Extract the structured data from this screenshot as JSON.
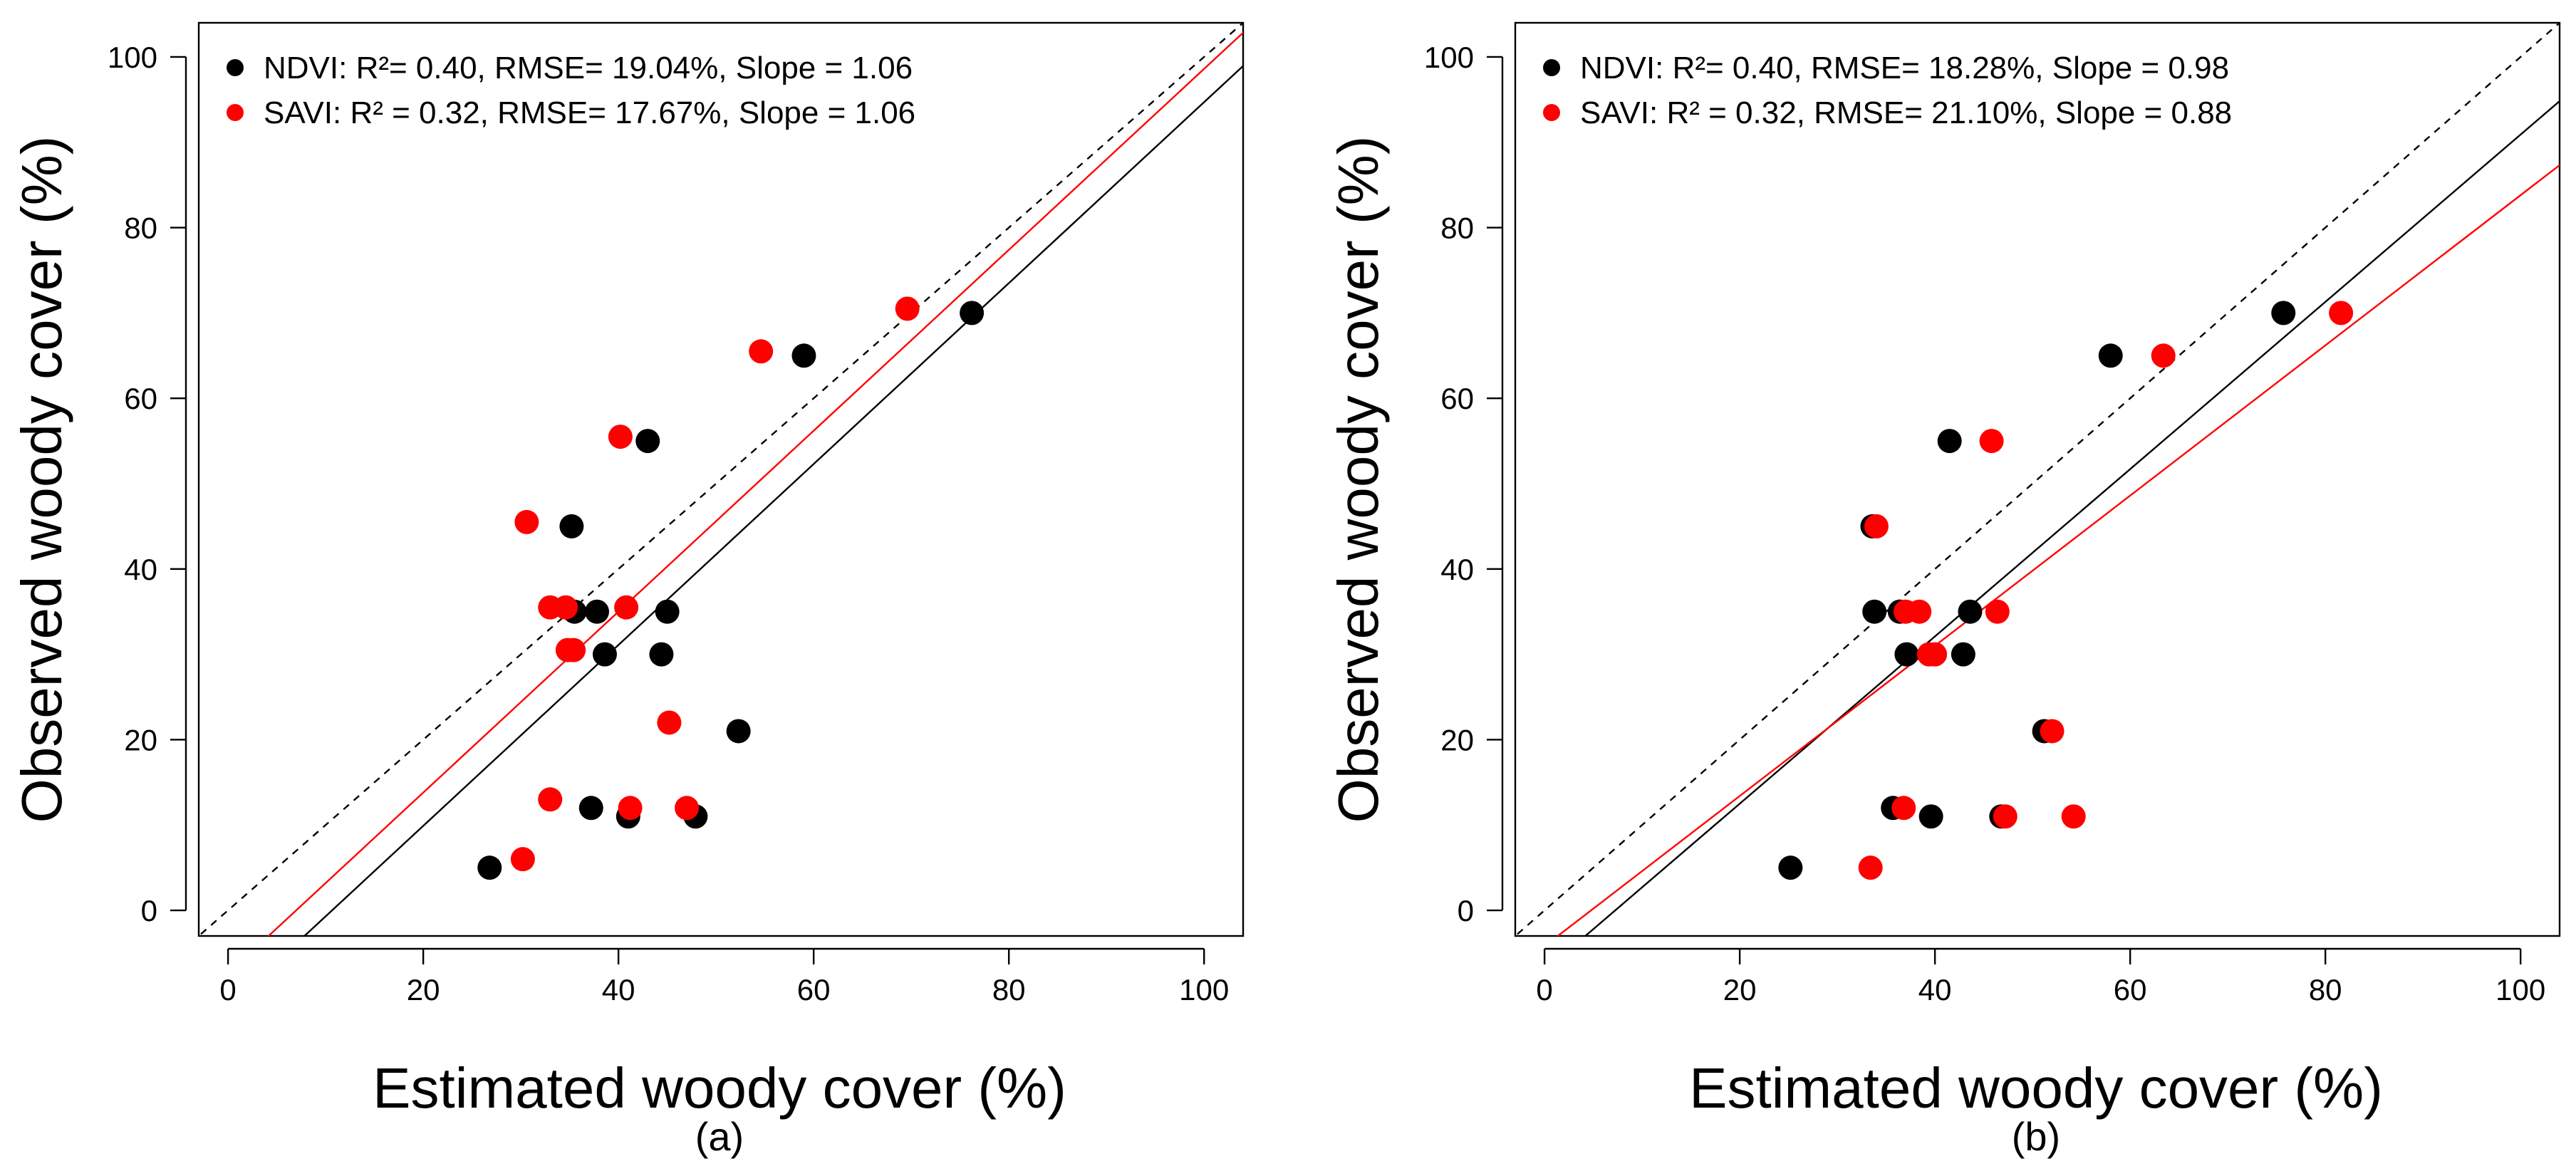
{
  "chart_data": [
    {
      "type": "scatter",
      "panel_label": "(a)",
      "xlabel": "Estimated woody cover (%)",
      "ylabel": "Observed woody cover (%)",
      "xlim": [
        -3,
        104
      ],
      "ylim": [
        -3,
        104
      ],
      "xticks": [
        0,
        20,
        40,
        60,
        80,
        100
      ],
      "yticks": [
        0,
        20,
        40,
        60,
        80,
        100
      ],
      "grid": false,
      "legend_position": "top-left",
      "series": [
        {
          "name": "NDVI",
          "legend": "NDVI: R²= 0.40, RMSE= 19.04%, Slope = 1.06",
          "color": "#000000",
          "x": [
            26.8,
            35.2,
            35.5,
            37.2,
            37.8,
            38.6,
            41.0,
            43.0,
            44.4,
            45.0,
            47.9,
            52.3,
            59.0,
            76.2
          ],
          "y": [
            5,
            45,
            35,
            12,
            35,
            30,
            11,
            55,
            30,
            35,
            11,
            21,
            65,
            70
          ],
          "fit": {
            "intercept": -11.3,
            "slope": 1.06
          }
        },
        {
          "name": "SAVI",
          "legend": "SAVI: R² = 0.32, RMSE= 17.67%, Slope = 1.06",
          "color": "#ff0000",
          "x": [
            30.2,
            30.6,
            33.0,
            33.0,
            34.6,
            34.8,
            35.4,
            40.2,
            40.8,
            41.2,
            45.2,
            47.0,
            54.6,
            69.6
          ],
          "y": [
            6,
            45.5,
            13,
            35.5,
            35.5,
            30.5,
            30.5,
            55.5,
            35.5,
            12,
            22,
            12,
            65.5,
            70.5
          ],
          "fit": {
            "intercept": -7.4,
            "slope": 1.06
          }
        },
        {
          "name": "1:1 line",
          "style": "dashed",
          "color": "#000000",
          "fit": {
            "intercept": 0,
            "slope": 1
          }
        }
      ]
    },
    {
      "type": "scatter",
      "panel_label": "(b)",
      "xlabel": "Estimated woody cover (%)",
      "ylabel": "Observed woody cover (%)",
      "xlim": [
        -3,
        104
      ],
      "ylim": [
        -3,
        104
      ],
      "xticks": [
        0,
        20,
        40,
        60,
        80,
        100
      ],
      "yticks": [
        0,
        20,
        40,
        60,
        80,
        100
      ],
      "grid": false,
      "legend_position": "top-left",
      "series": [
        {
          "name": "NDVI",
          "legend": "NDVI: R²= 0.40, RMSE= 18.28%, Slope = 0.98",
          "color": "#000000",
          "x": [
            25.2,
            33.6,
            33.8,
            35.7,
            36.4,
            37.1,
            39.6,
            41.5,
            42.9,
            43.6,
            46.8,
            51.2,
            58.0,
            75.7
          ],
          "y": [
            5,
            45,
            35,
            12,
            35,
            30,
            11,
            55,
            30,
            35,
            11,
            21,
            65,
            70
          ],
          "fit": {
            "intercept": -7.1,
            "slope": 0.98
          }
        },
        {
          "name": "SAVI",
          "legend": "SAVI: R² = 0.32, RMSE= 21.10%, Slope = 0.88",
          "color": "#ff0000",
          "x": [
            33.4,
            34.0,
            36.8,
            37.0,
            38.4,
            39.4,
            40.0,
            45.8,
            46.4,
            47.2,
            52.0,
            54.2,
            63.4,
            81.6
          ],
          "y": [
            5,
            45,
            12,
            35,
            35,
            30,
            30,
            55,
            35,
            11,
            21,
            11,
            65,
            70
          ],
          "fit": {
            "intercept": -4.2,
            "slope": 0.88
          }
        },
        {
          "name": "1:1 line",
          "style": "dashed",
          "color": "#000000",
          "fit": {
            "intercept": 0,
            "slope": 1
          }
        }
      ]
    }
  ]
}
